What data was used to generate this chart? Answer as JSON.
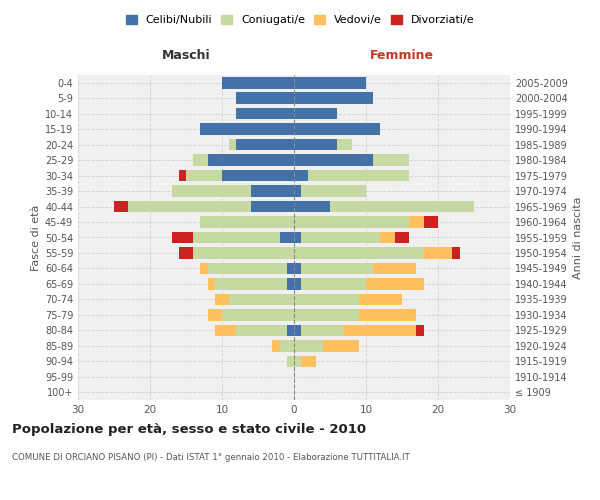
{
  "age_groups": [
    "100+",
    "95-99",
    "90-94",
    "85-89",
    "80-84",
    "75-79",
    "70-74",
    "65-69",
    "60-64",
    "55-59",
    "50-54",
    "45-49",
    "40-44",
    "35-39",
    "30-34",
    "25-29",
    "20-24",
    "15-19",
    "10-14",
    "5-9",
    "0-4"
  ],
  "birth_years": [
    "≤ 1909",
    "1910-1914",
    "1915-1919",
    "1920-1924",
    "1925-1929",
    "1930-1934",
    "1935-1939",
    "1940-1944",
    "1945-1949",
    "1950-1954",
    "1955-1959",
    "1960-1964",
    "1965-1969",
    "1970-1974",
    "1975-1979",
    "1980-1984",
    "1985-1989",
    "1990-1994",
    "1995-1999",
    "2000-2004",
    "2005-2009"
  ],
  "male": {
    "celibi": [
      0,
      0,
      0,
      0,
      1,
      0,
      0,
      1,
      1,
      0,
      2,
      0,
      6,
      6,
      10,
      12,
      8,
      13,
      8,
      8,
      10
    ],
    "coniugati": [
      0,
      0,
      1,
      2,
      7,
      10,
      9,
      10,
      11,
      14,
      12,
      13,
      17,
      11,
      5,
      2,
      1,
      0,
      0,
      0,
      0
    ],
    "vedovi": [
      0,
      0,
      0,
      1,
      3,
      2,
      2,
      1,
      1,
      0,
      0,
      0,
      0,
      0,
      0,
      0,
      0,
      0,
      0,
      0,
      0
    ],
    "divorziati": [
      0,
      0,
      0,
      0,
      0,
      0,
      0,
      0,
      0,
      2,
      3,
      0,
      2,
      0,
      1,
      0,
      0,
      0,
      0,
      0,
      0
    ]
  },
  "female": {
    "nubili": [
      0,
      0,
      0,
      0,
      1,
      0,
      0,
      1,
      1,
      0,
      1,
      0,
      5,
      1,
      2,
      11,
      6,
      12,
      6,
      11,
      10
    ],
    "coniugate": [
      0,
      0,
      1,
      4,
      6,
      9,
      9,
      9,
      10,
      18,
      11,
      16,
      20,
      9,
      14,
      5,
      2,
      0,
      0,
      0,
      0
    ],
    "vedove": [
      0,
      0,
      2,
      5,
      10,
      8,
      6,
      8,
      6,
      4,
      2,
      2,
      0,
      0,
      0,
      0,
      0,
      0,
      0,
      0,
      0
    ],
    "divorziate": [
      0,
      0,
      0,
      0,
      1,
      0,
      0,
      0,
      0,
      1,
      2,
      2,
      0,
      0,
      0,
      0,
      0,
      0,
      0,
      0,
      0
    ]
  },
  "colors": {
    "celibi": "#4472a8",
    "coniugati": "#c5d9a0",
    "vedovi": "#ffc060",
    "divorziati": "#cc2222"
  },
  "title": "Popolazione per età, sesso e stato civile - 2010",
  "subtitle": "COMUNE DI ORCIANO PISANO (PI) - Dati ISTAT 1° gennaio 2010 - Elaborazione TUTTITALIA.IT",
  "xlabel_left": "Maschi",
  "xlabel_right": "Femmine",
  "ylabel_left": "Fasce di età",
  "ylabel_right": "Anni di nascita",
  "xlim": 30,
  "background_color": "#ffffff",
  "plot_bg": "#f0f0f0",
  "grid_color": "#cccccc"
}
